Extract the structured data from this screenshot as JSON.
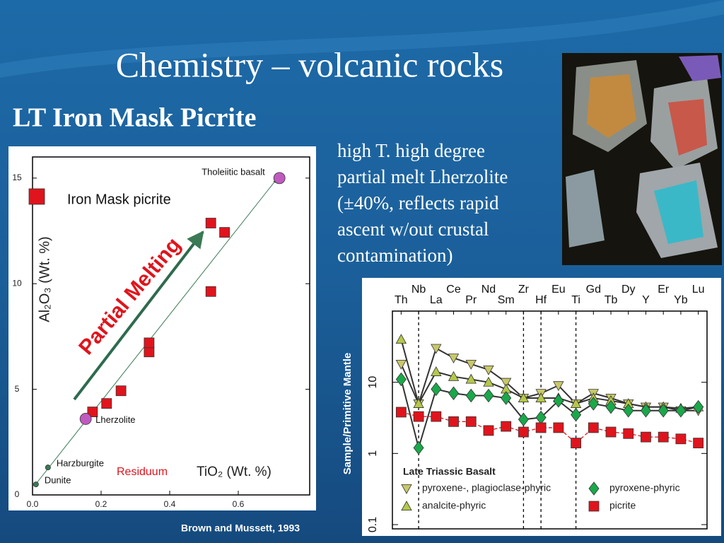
{
  "title": "Chemistry – volcanic rocks",
  "subtitle": "LT Iron Mask Picrite",
  "description": [
    "high T. high degree",
    "partial melt Lherzolite",
    "(±40%, reflects rapid",
    "ascent w/out crustal",
    "contamination)"
  ],
  "citation": "Brown and Mussett, 1993",
  "chart_data": [
    {
      "type": "scatter",
      "xlabel": "TiO₂ (Wt. %)",
      "ylabel": "Al₂O₃ (Wt. %)",
      "annotations": [
        "Partial Melting",
        "Residuum"
      ],
      "xlim": [
        0,
        0.8
      ],
      "xticks": [
        {
          "value": 0,
          "label": "0.0"
        },
        0.2,
        0.4,
        0.6
      ],
      "ylim": [
        0,
        16
      ],
      "yticks": [
        0,
        5,
        10,
        15
      ],
      "series": [
        {
          "name": "Iron Mask picrite",
          "color": "#e0141c",
          "marker": "square",
          "x": [
            0.175,
            0.216,
            0.258,
            0.34,
            0.34,
            0.52,
            0.52,
            0.56
          ],
          "values": [
            3.93,
            4.33,
            4.93,
            6.77,
            7.2,
            9.63,
            12.87,
            12.43
          ]
        },
        {
          "name": "Tholeiitic basalt",
          "color": "#c05ac0",
          "marker": "circle",
          "x": [
            0.72
          ],
          "values": [
            15.0
          ]
        },
        {
          "name": "Lherzolite",
          "color": "#c05ac0",
          "marker": "circle",
          "x": [
            0.155
          ],
          "values": [
            3.6
          ]
        },
        {
          "name": "Harzburgite",
          "color": "#3a7a55",
          "marker": "dot",
          "x": [
            0.045
          ],
          "values": [
            1.3
          ]
        },
        {
          "name": "Dunite",
          "color": "#3a7a55",
          "marker": "dot",
          "x": [
            0.01
          ],
          "values": [
            0.5
          ]
        }
      ]
    },
    {
      "type": "line",
      "ylabel": "Sample/Primitive Mantle",
      "legend_title": "Late Triassic Basalt",
      "log_y": true,
      "categories": [
        "Th",
        "Nb",
        "La",
        "Ce",
        "Pr",
        "Nd",
        "Sm",
        "Zr",
        "Hf",
        "Eu",
        "Ti",
        "Gd",
        "Tb",
        "Dy",
        "Y",
        "Er",
        "Yb",
        "Lu"
      ],
      "dashed_at": [
        1,
        7,
        8,
        10
      ],
      "ylim": [
        0.1,
        100
      ],
      "yticks": [
        0.1,
        1,
        10
      ],
      "series": [
        {
          "name": "pyroxene-, plagioclase-phyric",
          "color": "#c8c86a",
          "marker": "triangle-down",
          "values": [
            18,
            5,
            30,
            22,
            18,
            15,
            10,
            6,
            7,
            9,
            5,
            7,
            6,
            5,
            4.5,
            4.5,
            4,
            4
          ]
        },
        {
          "name": "analcite-phyric",
          "color": "#b5c84a",
          "marker": "triangle-up",
          "values": [
            40,
            5,
            14,
            12,
            11,
            10,
            8,
            6,
            6,
            6,
            5,
            6,
            5.5,
            5,
            4.5,
            4.5,
            4.3,
            4.5
          ]
        },
        {
          "name": "pyroxene-phyric",
          "color": "#1aa84a",
          "marker": "diamond",
          "values": [
            11,
            1.2,
            8,
            7,
            6.5,
            6.5,
            6,
            3,
            3.2,
            5.5,
            3.5,
            5,
            4.5,
            4,
            4,
            4,
            4,
            4.5
          ]
        },
        {
          "name": "picrite",
          "color": "#e0141c",
          "marker": "square",
          "values": [
            3.8,
            3.3,
            3.3,
            2.8,
            2.8,
            2.1,
            2.4,
            2.0,
            2.3,
            2.3,
            1.4,
            2.3,
            2.0,
            1.9,
            1.7,
            1.7,
            1.6,
            1.4
          ]
        }
      ]
    }
  ]
}
